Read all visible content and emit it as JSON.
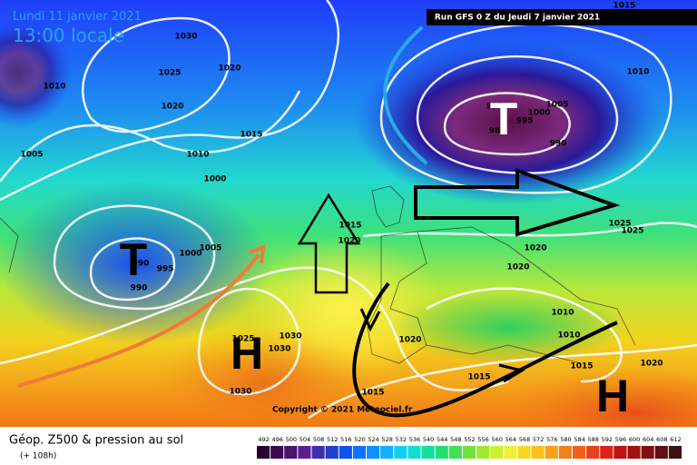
{
  "header": {
    "date": "Lundi 11 janvier 2021",
    "time": "13:00 locale",
    "run": "Run GFS 0 Z du Jeudi 7 janvier 2021"
  },
  "footer": {
    "title": "Géop. Z500 & pression au sol",
    "forecast": "(+ 108h)",
    "copyright": "Copyright © 2021 Meteociel.fr"
  },
  "legend": [
    "492",
    "496",
    "500",
    "504",
    "508",
    "512",
    "516",
    "520",
    "524",
    "528",
    "532",
    "536",
    "540",
    "544",
    "548",
    "552",
    "556",
    "560",
    "564",
    "568",
    "572",
    "576",
    "580",
    "584",
    "588",
    "592",
    "596",
    "600",
    "604",
    "608",
    "612"
  ],
  "systems": [
    "T",
    "T",
    "H",
    "H"
  ],
  "isobars": [
    "1030",
    "1025",
    "1020",
    "1020",
    "1010",
    "1005",
    "1015",
    "1010",
    "1000",
    "1005",
    "1000",
    "995",
    "990",
    "990",
    "1015",
    "1020",
    "990",
    "995",
    "1000",
    "1005",
    "990",
    "985",
    "1010",
    "1015",
    "1020",
    "1020",
    "1025",
    "1025",
    "1030",
    "1030",
    "1025",
    "1030",
    "1020",
    "1015",
    "1015",
    "1010",
    "1010",
    "1015",
    "1020"
  ]
}
